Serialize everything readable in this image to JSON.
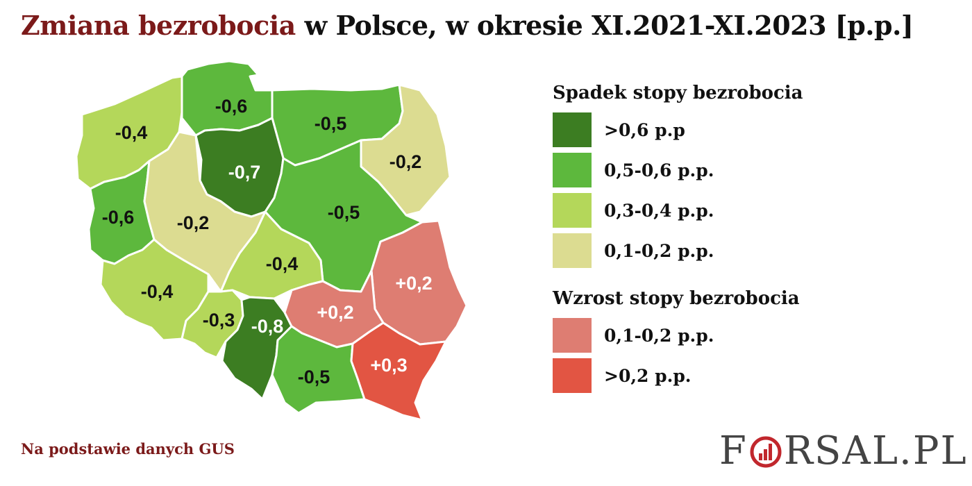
{
  "title": {
    "accent": "Zmiana bezrobocia",
    "rest": " w Polsce, w okresie XI.2021-XI.2023 [p.p.]"
  },
  "colors": {
    "dark_green": "#3c7d22",
    "green": "#5db83d",
    "light_green": "#b4d75a",
    "pale": "#dcdc91",
    "light_red": "#de7d72",
    "red": "#e25543",
    "title_accent": "#7b1a1a"
  },
  "legend": {
    "decrease_heading": "Spadek stopy bezrobocia",
    "decrease_items": [
      {
        "label": ">0,6 p.p",
        "color": "#3c7d22"
      },
      {
        "label": "0,5-0,6 p.p.",
        "color": "#5db83d"
      },
      {
        "label": "0,3-0,4 p.p.",
        "color": "#b4d75a"
      },
      {
        "label": "0,1-0,2 p.p.",
        "color": "#dcdc91"
      }
    ],
    "increase_heading": "Wzrost stopy bezrobocia",
    "increase_items": [
      {
        "label": "0,1-0,2 p.p.",
        "color": "#de7d72"
      },
      {
        "label": ">0,2 p.p.",
        "color": "#e25543"
      }
    ]
  },
  "regions": [
    {
      "id": "zachodniopomorskie",
      "value": "-0,4",
      "category": "light_green"
    },
    {
      "id": "pomorskie",
      "value": "-0,6",
      "category": "green"
    },
    {
      "id": "warminsko-mazurskie",
      "value": "-0,5",
      "category": "green"
    },
    {
      "id": "podlaskie",
      "value": "-0,2",
      "category": "pale"
    },
    {
      "id": "kujawsko-pomorskie",
      "value": "-0,7",
      "category": "dark_green"
    },
    {
      "id": "lubuskie",
      "value": "-0,6",
      "category": "green"
    },
    {
      "id": "wielkopolskie",
      "value": "-0,2",
      "category": "pale"
    },
    {
      "id": "mazowieckie",
      "value": "-0,5",
      "category": "green"
    },
    {
      "id": "lodzkie",
      "value": "-0,4",
      "category": "light_green"
    },
    {
      "id": "lubelskie",
      "value": "+0,2",
      "category": "light_red"
    },
    {
      "id": "dolnoslaskie",
      "value": "-0,4",
      "category": "light_green"
    },
    {
      "id": "opolskie",
      "value": "-0,3",
      "category": "light_green"
    },
    {
      "id": "slaskie",
      "value": "-0,8",
      "category": "dark_green"
    },
    {
      "id": "swietokrzyskie",
      "value": "+0,2",
      "category": "light_red"
    },
    {
      "id": "malopolskie",
      "value": "-0,5",
      "category": "green"
    },
    {
      "id": "podkarpackie",
      "value": "+0,3",
      "category": "red"
    }
  ],
  "source": "Na podstawie danych GUS",
  "logo": {
    "before": "F",
    "after": "RSAL.PL"
  }
}
